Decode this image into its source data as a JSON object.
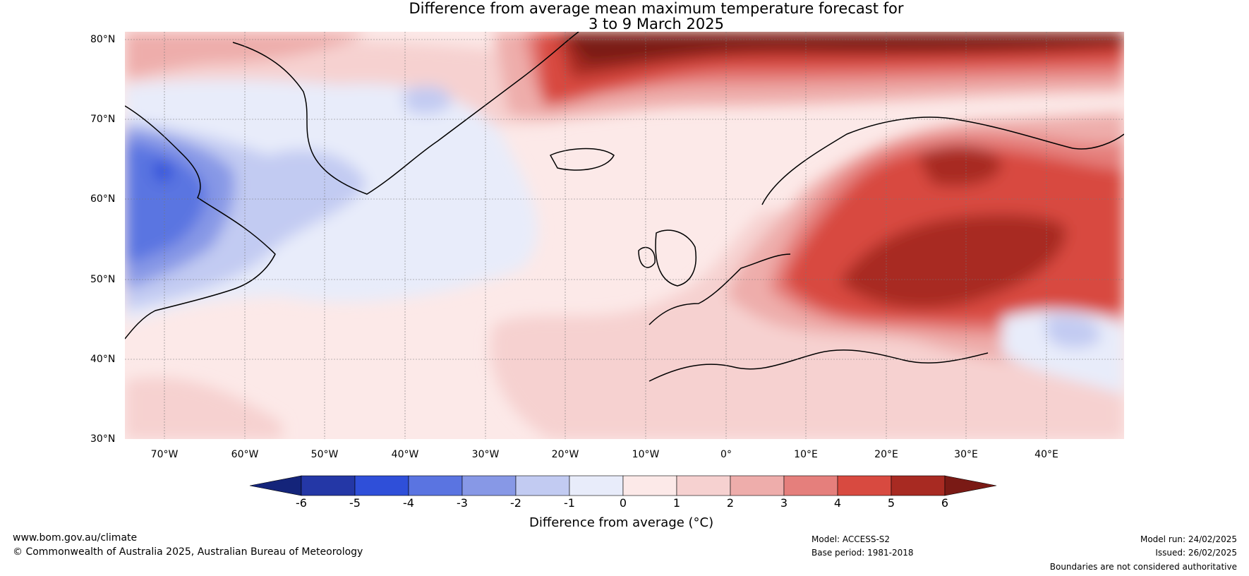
{
  "title": {
    "line1": "Difference from average mean maximum temperature forecast for",
    "line2": "3 to 9 March 2025"
  },
  "map": {
    "latitude_labels": [
      "80°N",
      "70°N",
      "60°N",
      "50°N",
      "40°N",
      "30°N"
    ],
    "longitude_labels": [
      "70°W",
      "60°W",
      "50°W",
      "40°W",
      "30°W",
      "20°W",
      "10°W",
      "0°",
      "10°E",
      "20°E",
      "30°E",
      "40°E"
    ],
    "region_descriptions": []
  },
  "colorbar": {
    "title": "Difference from average (°C)",
    "ticks": [
      "-6",
      "-5",
      "-4",
      "-3",
      "-2",
      "-1",
      "0",
      "1",
      "2",
      "3",
      "4",
      "5",
      "6"
    ],
    "colors": [
      "#14247a",
      "#2437a6",
      "#2f4fd9",
      "#5a74e1",
      "#8798e6",
      "#c2cbf2",
      "#e8ecfa",
      "#fce9e8",
      "#f6d1d0",
      "#eeadab",
      "#e57f7c",
      "#d84a40",
      "#a82a22",
      "#7a1a15"
    ]
  },
  "footer": {
    "url": "www.bom.gov.au/climate",
    "copyright": "© Commonwealth of Australia 2025, Australian Bureau of Meteorology",
    "model": "Model: ACCESS-S2",
    "base_period": "Base period: 1981-2018",
    "model_run": "Model run: 24/02/2025",
    "issued": "Issued: 26/02/2025",
    "disclaimer": "Boundaries are not considered authoritative"
  }
}
